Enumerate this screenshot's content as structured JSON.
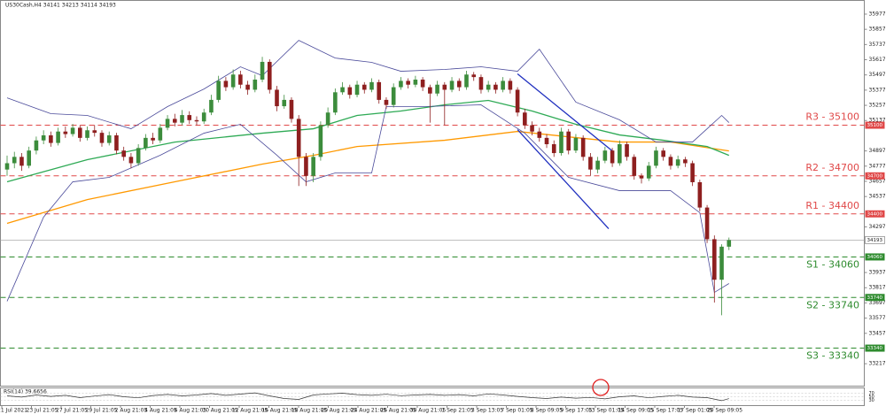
{
  "chart_data": {
    "type": "candlestick",
    "title": "US30Cash,H4  34141 34213 34114 34193",
    "ylim": [
      33040,
      36085
    ],
    "yticks": [
      35977,
      35857,
      35737,
      35617,
      35497,
      35377,
      35257,
      35137,
      34897,
      34777,
      34657,
      34537,
      34297,
      33937,
      33817,
      33697,
      33577,
      33457,
      33217
    ],
    "categories": [
      "21 Jul 2021",
      "23 Jul 21:05",
      "27 Jul 21:05",
      "29 Jul 21:05",
      "2 Aug 21:05",
      "4 Aug 21:05",
      "6 Aug 21:05",
      "10 Aug 21:05",
      "12 Aug 21:05",
      "16 Aug 21:05",
      "18 Aug 21:05",
      "20 Aug 21:05",
      "24 Aug 21:05",
      "26 Aug 21:05",
      "30 Aug 21:05",
      "1 Sep 21:05",
      "3 Sep 13:05",
      "7 Sep 01:05",
      "8 Sep 09:05",
      "9 Sep 17:05",
      "13 Sep 01:05",
      "14 Sep 09:05",
      "15 Sep 17:05",
      "17 Sep 01:05",
      "20 Sep 09:05"
    ],
    "up_color": "#3c8c3c",
    "down_color": "#8e1f1f",
    "open": [
      34750,
      34800,
      34850,
      34780,
      34900,
      34980,
      35020,
      34960,
      35050,
      35030,
      35080,
      35000,
      35060,
      35040,
      34960,
      35020,
      34900,
      34850,
      34800,
      34920,
      35000,
      34980,
      35080,
      35150,
      35120,
      35180,
      35140,
      35130,
      35200,
      35300,
      35450,
      35400,
      35500,
      35420,
      35380,
      35460,
      35600,
      35380,
      35250,
      35300,
      35150,
      34850,
      34700,
      34850,
      35100,
      35200,
      35360,
      35400,
      35340,
      35420,
      35380,
      35440,
      35300,
      35260,
      35400,
      35450,
      35420,
      35460,
      35400,
      35350,
      35420,
      35380,
      35450,
      35400,
      35500,
      35480,
      35380,
      35420,
      35380,
      35450,
      35380,
      35200,
      35100,
      35050,
      35000,
      34950,
      34880,
      35050,
      34900,
      35000,
      34850,
      34750,
      34820,
      34900,
      34800,
      34950,
      34850,
      34700,
      34680,
      34780,
      34900,
      34850,
      34780,
      34830,
      34800,
      34650,
      34450,
      34200,
      33880,
      34141
    ],
    "high": [
      34860,
      34890,
      34880,
      34930,
      35010,
      35060,
      35050,
      35080,
      35090,
      35110,
      35100,
      35090,
      35100,
      35060,
      35050,
      35040,
      34930,
      34880,
      34950,
      35030,
      35040,
      35110,
      35180,
      35190,
      35220,
      35210,
      35170,
      35230,
      35340,
      35490,
      35480,
      35540,
      35530,
      35450,
      35500,
      35640,
      35620,
      35410,
      35340,
      35320,
      35180,
      34880,
      34880,
      35130,
      35240,
      35390,
      35440,
      35420,
      35450,
      35440,
      35470,
      35460,
      35320,
      35430,
      35480,
      35470,
      35490,
      35480,
      35420,
      35450,
      35440,
      35480,
      35470,
      35530,
      35520,
      35500,
      35450,
      35440,
      35480,
      35470,
      35400,
      35230,
      35130,
      35080,
      35030,
      34980,
      35080,
      35070,
      35030,
      35020,
      34880,
      34850,
      34930,
      34920,
      34980,
      34970,
      34870,
      34720,
      34810,
      34930,
      34920,
      34870,
      34860,
      34850,
      34820,
      34670,
      34470,
      34230,
      34160,
      34213
    ],
    "low": [
      34700,
      34760,
      34740,
      34760,
      34870,
      34950,
      34930,
      34940,
      35000,
      35010,
      34970,
      34980,
      35010,
      34930,
      34940,
      34870,
      34820,
      34760,
      34780,
      34900,
      34950,
      34960,
      35060,
      35090,
      35100,
      35110,
      35100,
      35110,
      35180,
      35280,
      35370,
      35380,
      35390,
      35340,
      35360,
      35440,
      35350,
      35210,
      35230,
      35120,
      34620,
      34620,
      34650,
      34820,
      35080,
      35180,
      35340,
      35310,
      35320,
      35350,
      35360,
      35270,
      35230,
      35240,
      35380,
      35390,
      35400,
      35370,
      35120,
      35330,
      35100,
      35360,
      35370,
      35380,
      35450,
      35350,
      35360,
      35350,
      35360,
      35350,
      35170,
      35070,
      35020,
      34970,
      34920,
      34850,
      34860,
      34870,
      34880,
      34820,
      34700,
      34720,
      34800,
      34770,
      34780,
      34820,
      34670,
      34640,
      34660,
      34760,
      34820,
      34750,
      34760,
      34770,
      34620,
      34420,
      34170,
      33700,
      33600,
      34114
    ],
    "close": [
      34800,
      34850,
      34780,
      34900,
      34980,
      35020,
      34960,
      35050,
      35030,
      35080,
      35000,
      35060,
      35040,
      34960,
      35020,
      34900,
      34850,
      34800,
      34920,
      35000,
      34980,
      35080,
      35150,
      35120,
      35180,
      35140,
      35130,
      35200,
      35300,
      35450,
      35400,
      35500,
      35420,
      35380,
      35460,
      35600,
      35380,
      35250,
      35300,
      35150,
      34850,
      34700,
      34850,
      35100,
      35200,
      35360,
      35400,
      35340,
      35420,
      35380,
      35440,
      35300,
      35260,
      35400,
      35450,
      35420,
      35460,
      35400,
      35350,
      35420,
      35380,
      35450,
      35400,
      35500,
      35480,
      35380,
      35420,
      35380,
      35450,
      35380,
      35200,
      35100,
      35050,
      35000,
      34950,
      34880,
      35050,
      34900,
      35000,
      34850,
      34750,
      34820,
      34900,
      34800,
      34950,
      34850,
      34700,
      34680,
      34780,
      34900,
      34850,
      34780,
      34830,
      34800,
      34650,
      34450,
      34200,
      33880,
      34141,
      34193
    ],
    "overlays": [
      {
        "color": "#ff9900",
        "x": [
          0,
          11,
          23,
          35,
          42,
          48,
          60,
          70,
          78,
          84,
          91,
          99
        ],
        "values": [
          34325,
          34513,
          34653,
          34793,
          34862,
          34932,
          34981,
          35051,
          35002,
          34967,
          34967,
          34897
        ]
      },
      {
        "color": "#2eaa55",
        "x": [
          0,
          11,
          23,
          35,
          42,
          48,
          54,
          60,
          66,
          72,
          78,
          84,
          90,
          96,
          99
        ],
        "values": [
          34653,
          34828,
          34967,
          35037,
          35072,
          35177,
          35212,
          35261,
          35296,
          35212,
          35107,
          35023,
          34981,
          34932,
          34862
        ]
      },
      {
        "color": "#4a4a9a",
        "x": [
          0,
          6,
          11,
          17,
          22,
          27,
          32,
          35,
          40,
          45,
          50,
          54,
          60,
          65,
          70,
          73,
          78,
          84,
          89,
          94,
          96,
          98,
          99
        ],
        "values": [
          35316,
          35191,
          35177,
          35072,
          35247,
          35386,
          35561,
          35491,
          35770,
          35630,
          35596,
          35526,
          35540,
          35561,
          35526,
          35700,
          35282,
          35142,
          34967,
          34967,
          35072,
          35177,
          35121
        ]
      },
      {
        "color": "#4a4a9a",
        "x": [
          0,
          5,
          9,
          14,
          21,
          27,
          32,
          37,
          41,
          45,
          50,
          52,
          57,
          65,
          71,
          77,
          84,
          91,
          95,
          97,
          99
        ],
        "values": [
          33710,
          34374,
          34653,
          34688,
          34863,
          35037,
          35107,
          34863,
          34653,
          34723,
          34723,
          35247,
          35247,
          35261,
          35037,
          34688,
          34583,
          34583,
          34409,
          33780,
          33850
        ]
      }
    ],
    "channel": {
      "color": "#1f2fbf",
      "lines": [
        {
          "x": [
            70,
            83
          ],
          "values": [
            35505,
            34897
          ]
        },
        {
          "x": [
            70,
            82.5
          ],
          "values": [
            35065,
            34283
          ]
        }
      ]
    },
    "levels": [
      {
        "label": "R3 - 35100",
        "value": 35100,
        "color": "#e04848"
      },
      {
        "label": "R2 - 34700",
        "value": 34700,
        "color": "#e04848"
      },
      {
        "label": "R1 - 34400",
        "value": 34400,
        "color": "#e04848"
      },
      {
        "label": "S1 - 34060",
        "value": 34060,
        "color": "#2e8b2e"
      },
      {
        "label": "S2 - 33740",
        "value": 33740,
        "color": "#2e8b2e"
      },
      {
        "label": "S3 - 33340",
        "value": 33340,
        "color": "#2e8b2e"
      }
    ],
    "last": 34193,
    "rsi": {
      "title": "RSI(14) 39.6656",
      "color": "#333333",
      "ylim": [
        0,
        100
      ],
      "yticks": [
        70,
        50,
        30
      ],
      "x": [
        0,
        2,
        4,
        6,
        8,
        10,
        12,
        14,
        16,
        18,
        20,
        22,
        24,
        26,
        28,
        30,
        32,
        34,
        36,
        38,
        40,
        42,
        44,
        46,
        48,
        50,
        52,
        54,
        56,
        58,
        60,
        62,
        64,
        66,
        68,
        70,
        72,
        74,
        76,
        78,
        80,
        82,
        84,
        86,
        88,
        90,
        92,
        94,
        96,
        98,
        99
      ],
      "values": [
        55,
        48,
        60,
        52,
        58,
        45,
        54,
        62,
        50,
        44,
        57,
        63,
        55,
        60,
        68,
        58,
        65,
        72,
        55,
        40,
        35,
        60,
        66,
        70,
        62,
        58,
        64,
        56,
        60,
        63,
        58,
        62,
        55,
        66,
        60,
        52,
        45,
        40,
        48,
        42,
        46,
        38,
        50,
        55,
        44,
        52,
        58,
        48,
        45,
        28,
        39.6656
      ]
    }
  }
}
